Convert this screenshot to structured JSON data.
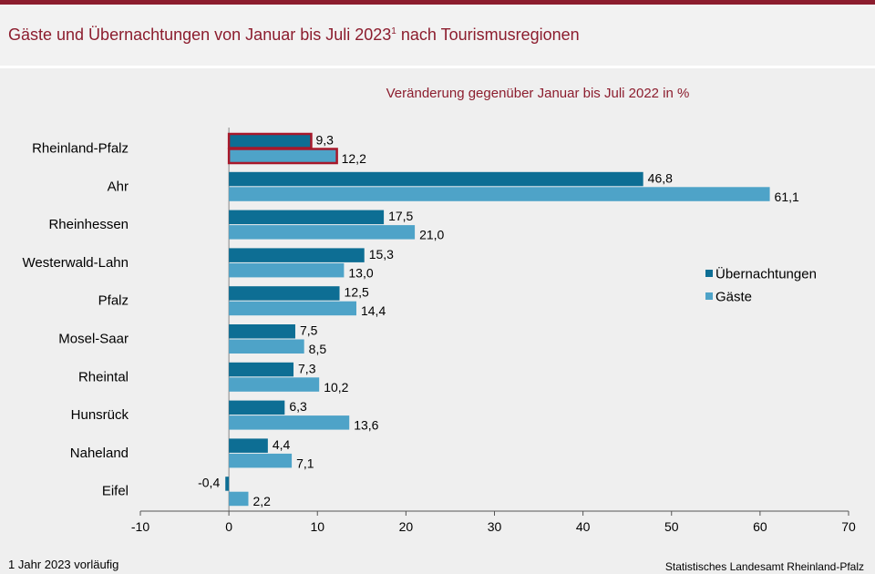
{
  "header": {
    "title_main": "Gäste und Übernachtungen von Januar bis Juli 2023",
    "title_sup": "1",
    "title_rest": " nach Tourismusregionen"
  },
  "footer": {
    "footnote": "1 Jahr 2023 vorläufig",
    "source": "Statistisches Landesamt Rheinland-Pfalz"
  },
  "chart_data": {
    "type": "bar",
    "orientation": "horizontal",
    "subtitle": "Veränderung gegenüber Januar bis Juli 2022 in %",
    "categories": [
      "Rheinland-Pfalz",
      "Ahr",
      "Rheinhessen",
      "Westerwald-Lahn",
      "Pfalz",
      "Mosel-Saar",
      "Rheintal",
      "Hunsrück",
      "Naheland",
      "Eifel"
    ],
    "series": [
      {
        "name": "Übernachtungen",
        "color": "#0d6e94",
        "values": [
          9.3,
          46.8,
          17.5,
          15.3,
          12.5,
          7.5,
          7.3,
          6.3,
          4.4,
          -0.4
        ]
      },
      {
        "name": "Gäste",
        "color": "#4ea3c8",
        "values": [
          12.2,
          61.1,
          21.0,
          13.0,
          14.4,
          8.5,
          10.2,
          13.6,
          7.1,
          2.2
        ]
      }
    ],
    "value_labels": [
      [
        "9,3",
        "46,8",
        "17,5",
        "15,3",
        "12,5",
        "7,5",
        "7,3",
        "6,3",
        "4,4",
        "-0,4"
      ],
      [
        "12,2",
        "61,1",
        "21,0",
        "13,0",
        "14,4",
        "8,5",
        "10,2",
        "13,6",
        "7,1",
        "2,2"
      ]
    ],
    "xlim": [
      -10,
      70
    ],
    "xticks": [
      -10,
      0,
      10,
      20,
      30,
      40,
      50,
      60,
      70
    ],
    "highlight_category": "Rheinland-Pfalz",
    "highlight_color": "#a8182a",
    "legend_position": "right",
    "grid": false
  }
}
